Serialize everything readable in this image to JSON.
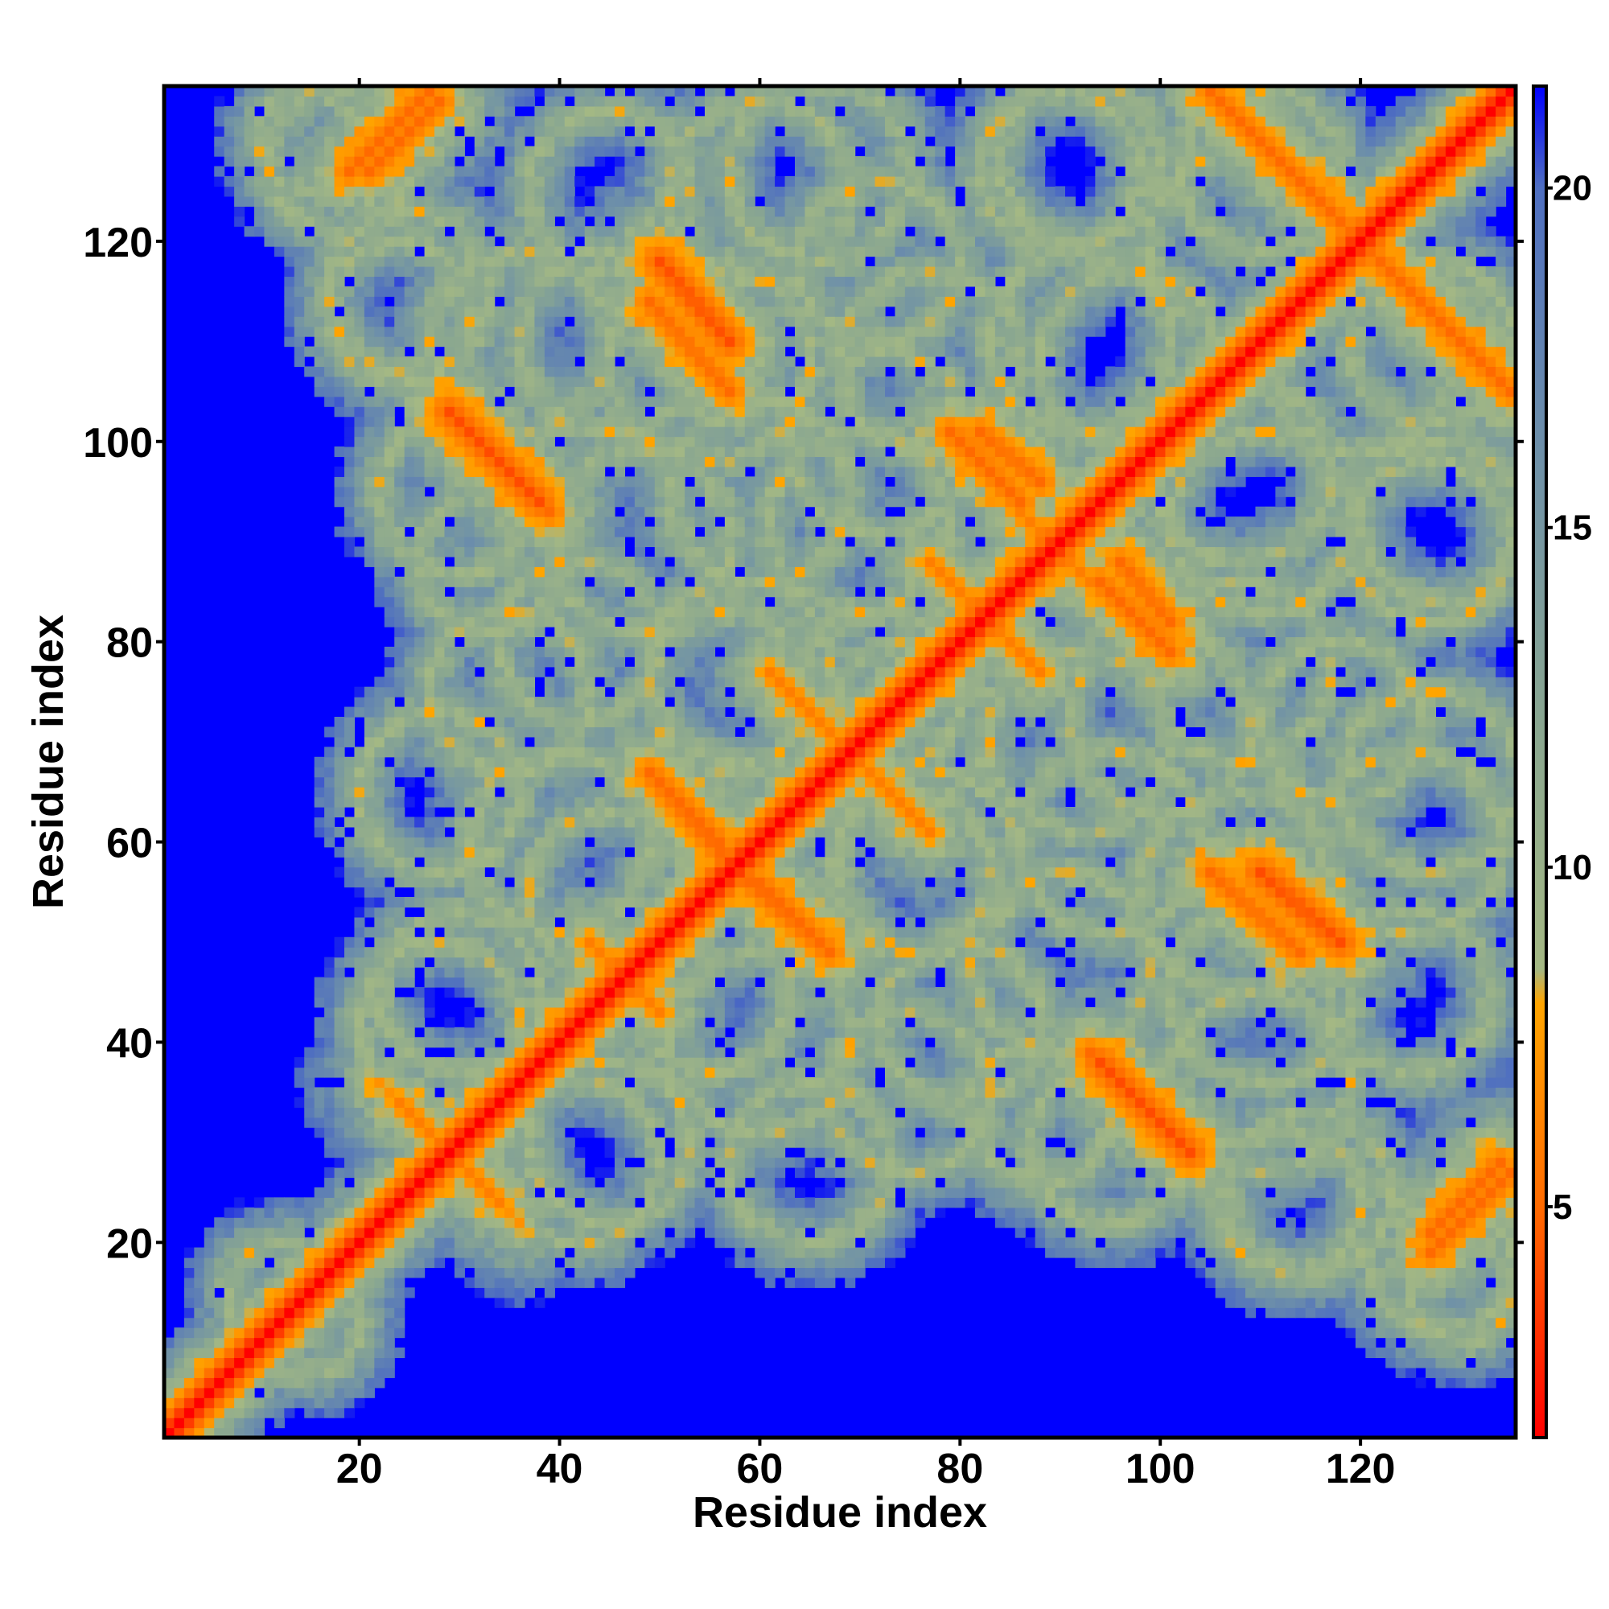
{
  "chart_data": {
    "type": "heatmap",
    "title": "",
    "xlabel": "Residue index",
    "ylabel": "Residue index",
    "xlim": [
      1,
      135
    ],
    "ylim": [
      1,
      135
    ],
    "n_residues": 135,
    "x_ticks": [
      20,
      40,
      60,
      80,
      100,
      120
    ],
    "y_ticks": [
      20,
      40,
      60,
      80,
      100,
      120
    ],
    "x_tick_labels": [
      "20",
      "40",
      "60",
      "80",
      "100",
      "120"
    ],
    "y_tick_labels": [
      "20",
      "40",
      "60",
      "80",
      "100",
      "120"
    ],
    "colorbar": {
      "range": [
        1.6,
        21.5
      ],
      "ticks": [
        5,
        10,
        15,
        20
      ],
      "tick_labels": [
        "5",
        "10",
        "15",
        "20"
      ],
      "stops": [
        {
          "value": 1.6,
          "color": "#ff0000"
        },
        {
          "value": 5.0,
          "color": "#ff6a00"
        },
        {
          "value": 8.0,
          "color": "#ffa500"
        },
        {
          "value": 8.5,
          "color": "#a4b884"
        },
        {
          "value": 12.0,
          "color": "#8aa790"
        },
        {
          "value": 16.0,
          "color": "#6f91a8"
        },
        {
          "value": 20.0,
          "color": "#4f6fc0"
        },
        {
          "value": 21.5,
          "color": "#0000ff"
        }
      ]
    },
    "background_value": 21.5,
    "background_color": "#0000ff",
    "grid": false,
    "legend": "colorbar-right",
    "contact_bands": [
      {
        "kind": "anti",
        "from": [
          19,
          127
        ],
        "to": [
          27,
          135
        ],
        "min": 5,
        "w": 2.5
      },
      {
        "kind": "anti",
        "from": [
          50,
          118
        ],
        "to": [
          57,
          110
        ],
        "min": 4,
        "w": 2.5
      },
      {
        "kind": "anti",
        "from": [
          29,
          103
        ],
        "to": [
          38,
          94
        ],
        "min": 4,
        "w": 2.5
      },
      {
        "kind": "anti",
        "from": [
          82,
          101
        ],
        "to": [
          88,
          96
        ],
        "min": 5,
        "w": 2
      },
      {
        "kind": "anti",
        "from": [
          94,
          86
        ],
        "to": [
          101,
          79
        ],
        "min": 5,
        "w": 2
      },
      {
        "kind": "anti",
        "from": [
          84,
          81
        ],
        "to": [
          88,
          77
        ],
        "min": 6,
        "w": 2
      },
      {
        "kind": "anti",
        "from": [
          61,
          77
        ],
        "to": [
          65,
          73
        ],
        "min": 6,
        "w": 2
      },
      {
        "kind": "anti",
        "from": [
          49,
          67
        ],
        "to": [
          56,
          59
        ],
        "min": 5,
        "w": 2.5
      },
      {
        "kind": "anti",
        "from": [
          60,
          56
        ],
        "to": [
          67,
          49
        ],
        "min": 5,
        "w": 2.5
      },
      {
        "kind": "anti",
        "from": [
          70,
          68
        ],
        "to": [
          76,
          62
        ],
        "min": 6,
        "w": 2
      },
      {
        "kind": "anti",
        "from": [
          105,
          135
        ],
        "to": [
          117,
          123
        ],
        "min": 5,
        "w": 2.5
      },
      {
        "kind": "anti",
        "from": [
          121,
          119
        ],
        "to": [
          132,
          108
        ],
        "min": 5,
        "w": 2.5
      },
      {
        "kind": "anti",
        "from": [
          105,
          57
        ],
        "to": [
          114,
          49
        ],
        "min": 5,
        "w": 2.5
      },
      {
        "kind": "anti",
        "from": [
          93,
          39
        ],
        "to": [
          103,
          29
        ],
        "min": 5,
        "w": 2.5
      },
      {
        "kind": "anti",
        "from": [
          127,
          21
        ],
        "to": [
          134,
          28
        ],
        "min": 5,
        "w": 2.5
      },
      {
        "kind": "anti",
        "from": [
          43,
          50
        ],
        "to": [
          50,
          43
        ],
        "min": 6,
        "w": 2
      },
      {
        "kind": "anti",
        "from": [
          24,
          34
        ],
        "to": [
          30,
          28
        ],
        "min": 6,
        "w": 2
      },
      {
        "kind": "anti",
        "from": [
          30,
          28
        ],
        "to": [
          36,
          22
        ],
        "min": 7,
        "w": 2
      },
      {
        "kind": "anti",
        "from": [
          86,
          93
        ],
        "to": [
          93,
          86
        ],
        "min": 6,
        "w": 2
      }
    ],
    "halo_rings": [
      {
        "center": [
          18,
          128
        ],
        "radius": 7
      },
      {
        "center": [
          45,
          125
        ],
        "radius": 8
      },
      {
        "center": [
          66,
          127
        ],
        "radius": 9
      },
      {
        "center": [
          90,
          127
        ],
        "radius": 8
      },
      {
        "center": [
          110,
          127
        ],
        "radius": 8
      },
      {
        "center": [
          24,
          113
        ],
        "radius": 7
      },
      {
        "center": [
          36,
          110
        ],
        "radius": 9
      },
      {
        "center": [
          55,
          108
        ],
        "radius": 10
      },
      {
        "center": [
          77,
          108
        ],
        "radius": 9
      },
      {
        "center": [
          97,
          108
        ],
        "radius": 9
      },
      {
        "center": [
          120,
          108
        ],
        "radius": 9
      },
      {
        "center": [
          30,
          95
        ],
        "radius": 8
      },
      {
        "center": [
          48,
          90
        ],
        "radius": 9
      },
      {
        "center": [
          70,
          92
        ],
        "radius": 9
      },
      {
        "center": [
          110,
          92
        ],
        "radius": 9
      },
      {
        "center": [
          128,
          92
        ],
        "radius": 8
      },
      {
        "center": [
          35,
          75
        ],
        "radius": 8
      },
      {
        "center": [
          58,
          77
        ],
        "radius": 9
      },
      {
        "center": [
          75,
          72
        ],
        "radius": 8
      },
      {
        "center": [
          100,
          72
        ],
        "radius": 9
      },
      {
        "center": [
          118,
          72
        ],
        "radius": 8
      },
      {
        "center": [
          40,
          60
        ],
        "radius": 9
      },
      {
        "center": [
          75,
          57
        ],
        "radius": 8
      },
      {
        "center": [
          95,
          60
        ],
        "radius": 9
      },
      {
        "center": [
          125,
          60
        ],
        "radius": 9
      },
      {
        "center": [
          30,
          45
        ],
        "radius": 8
      },
      {
        "center": [
          55,
          45
        ],
        "radius": 8
      },
      {
        "center": [
          80,
          42
        ],
        "radius": 8
      },
      {
        "center": [
          110,
          45
        ],
        "radius": 9
      },
      {
        "center": [
          42,
          28
        ],
        "radius": 8
      },
      {
        "center": [
          65,
          28
        ],
        "radius": 8
      },
      {
        "center": [
          88,
          33
        ],
        "radius": 7
      },
      {
        "center": [
          115,
          25
        ],
        "radius": 8
      },
      {
        "center": [
          130,
          15
        ],
        "radius": 5
      },
      {
        "center": [
          12,
          15
        ],
        "radius": 5
      }
    ]
  }
}
